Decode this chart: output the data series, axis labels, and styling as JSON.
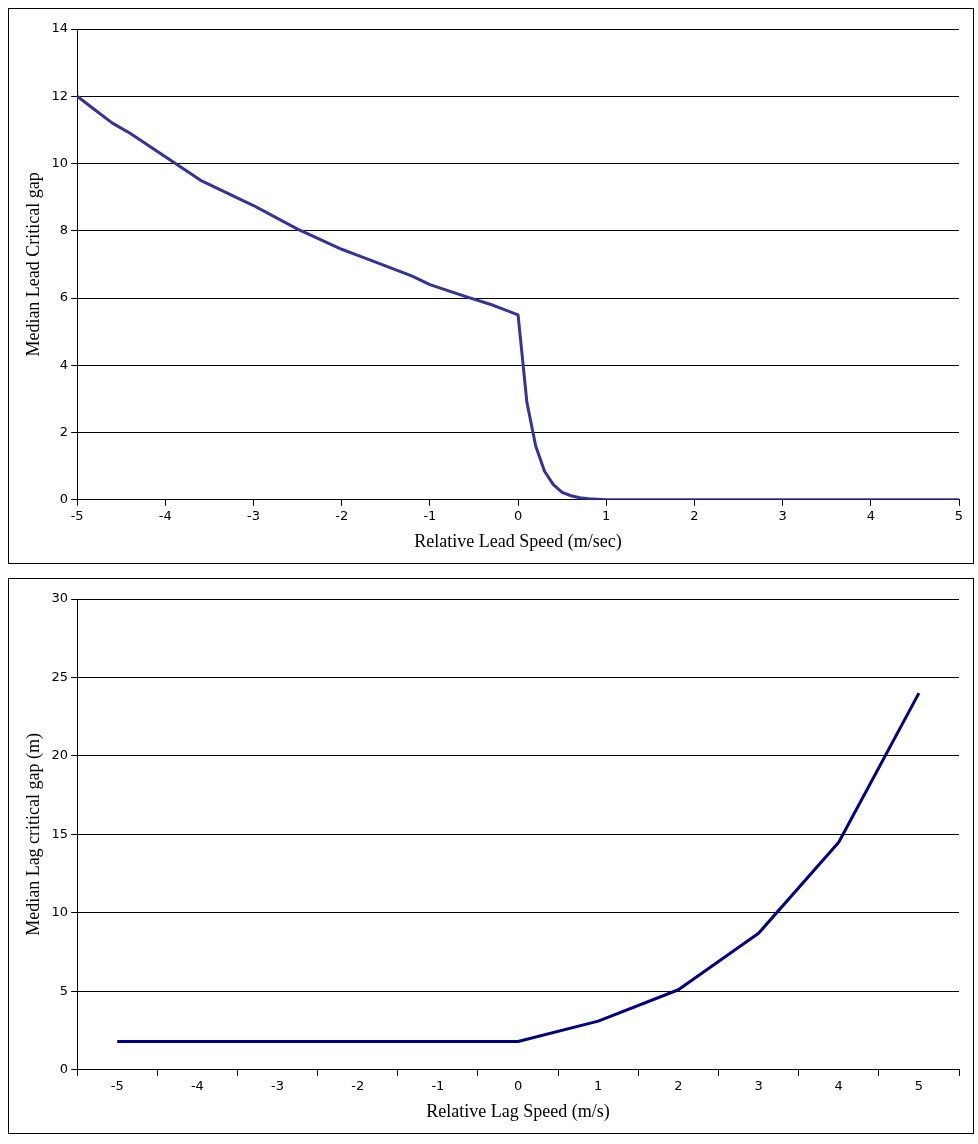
{
  "chart_data": [
    {
      "type": "line",
      "xlabel": "Relative Lead Speed (m/sec)",
      "ylabel": "Median Lead Critical gap",
      "x": [
        -5,
        -4.8,
        -4.6,
        -4.4,
        -4,
        -3.6,
        -3,
        -2.5,
        -2,
        -1.6,
        -1.2,
        -1,
        -0.6,
        -0.3,
        0,
        0.1,
        0.2,
        0.3,
        0.4,
        0.5,
        0.6,
        0.7,
        0.8,
        1,
        2,
        3,
        4,
        5
      ],
      "values": [
        12,
        11.6,
        11.2,
        10.9,
        10.2,
        9.5,
        8.75,
        8.05,
        7.45,
        7.05,
        6.65,
        6.4,
        6.05,
        5.8,
        5.5,
        2.9,
        1.6,
        0.85,
        0.45,
        0.22,
        0.12,
        0.06,
        0.03,
        0,
        0,
        0,
        0,
        0
      ],
      "color": "#333399",
      "xlim": [
        -5,
        5
      ],
      "xticks": [
        -5,
        -4,
        -3,
        -2,
        -1,
        0,
        1,
        2,
        3,
        4,
        5
      ],
      "ylim": [
        0,
        14
      ],
      "yticks": [
        0,
        2,
        4,
        6,
        8,
        10,
        12,
        14
      ],
      "grid": "y"
    },
    {
      "type": "line",
      "xlabel": "Relative Lag Speed (m/s)",
      "ylabel": "Median Lag critical gap (m)",
      "categories": [
        "-5",
        "-4",
        "-3",
        "-2",
        "-1",
        "0",
        "1",
        "2",
        "3",
        "4",
        "5"
      ],
      "values": [
        1.8,
        1.8,
        1.8,
        1.8,
        1.8,
        1.8,
        3.1,
        5.1,
        8.7,
        14.5,
        24
      ],
      "color": "#000080",
      "ylim": [
        0,
        30
      ],
      "yticks": [
        0,
        5,
        10,
        15,
        20,
        25,
        30
      ],
      "grid": "y"
    }
  ]
}
